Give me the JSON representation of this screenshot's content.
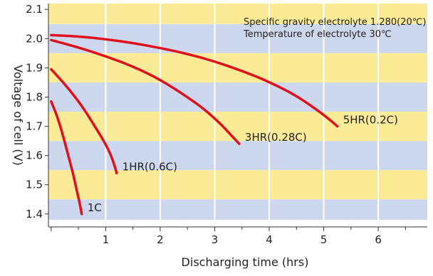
{
  "chart_data": {
    "type": "line",
    "title": "",
    "xlabel": "Discharging time (hrs)",
    "ylabel": "Voltage of cell (V)",
    "xlim": [
      -0.05,
      6.9
    ],
    "ylim": [
      1.38,
      2.12
    ],
    "x_ticks": [
      1,
      2,
      3,
      4,
      5,
      6
    ],
    "x_tick_labels": [
      "1",
      "2",
      "3",
      "4",
      "5",
      "6"
    ],
    "y_ticks": [
      1.4,
      1.5,
      1.6,
      1.7,
      1.8,
      1.9,
      2.0,
      2.1
    ],
    "y_tick_labels": [
      "1.4",
      "1.5",
      "1.6",
      "1.7",
      "1.8",
      "1.9",
      "2.0",
      "2.1"
    ],
    "grid": {
      "vertical": true,
      "horizontal": false
    },
    "background_bands": {
      "colors": [
        "#cdd8ee",
        "#fbeb96"
      ],
      "band_height_v": 0.1
    },
    "annotations": [
      "Specific gravity electrolyte 1.280(20℃)",
      "Temperature of electrolyte 30℃"
    ],
    "line_color": "#e0101c",
    "series": [
      {
        "name": "1C",
        "x": [
          0.0,
          0.1,
          0.2,
          0.3,
          0.4,
          0.47,
          0.52,
          0.55,
          0.56
        ],
        "y": [
          1.785,
          1.74,
          1.68,
          1.61,
          1.54,
          1.48,
          1.44,
          1.41,
          1.4
        ]
      },
      {
        "name": "1HR(0.6C)",
        "x": [
          0.0,
          0.2,
          0.4,
          0.6,
          0.8,
          0.95,
          1.05,
          1.12,
          1.18,
          1.2
        ],
        "y": [
          1.895,
          1.855,
          1.81,
          1.76,
          1.7,
          1.655,
          1.62,
          1.59,
          1.555,
          1.54
        ]
      },
      {
        "name": "3HR(0.28C)",
        "x": [
          0.0,
          0.5,
          1.0,
          1.5,
          2.0,
          2.5,
          2.8,
          3.1,
          3.3,
          3.45
        ],
        "y": [
          1.995,
          1.97,
          1.94,
          1.905,
          1.86,
          1.8,
          1.76,
          1.71,
          1.67,
          1.64
        ]
      },
      {
        "name": "5HR(0.2C)",
        "x": [
          0.0,
          0.5,
          1.0,
          1.5,
          2.0,
          2.5,
          3.0,
          3.5,
          4.0,
          4.5,
          5.0,
          5.25
        ],
        "y": [
          2.012,
          2.008,
          1.998,
          1.985,
          1.968,
          1.948,
          1.922,
          1.89,
          1.852,
          1.805,
          1.74,
          1.7
        ]
      }
    ]
  }
}
